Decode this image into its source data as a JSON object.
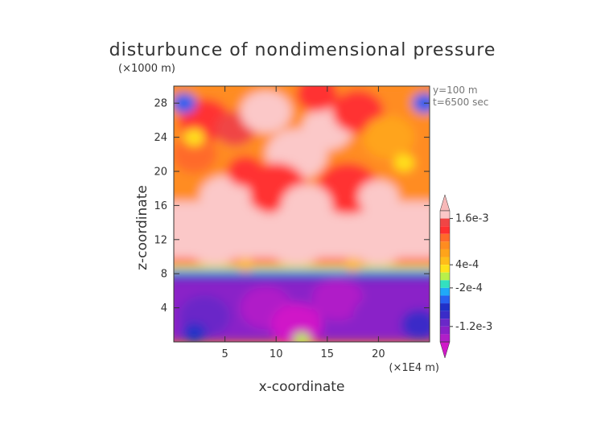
{
  "chart_data": {
    "type": "heatmap",
    "title": "disturbunce of nondimensional pressure",
    "xlabel": "x-coordinate",
    "ylabel": "z-coordinate",
    "x_unit": "(×1E4 m)",
    "y_unit": "(×1000 m)",
    "annotations": [
      "y=100 m",
      "t=6500 sec"
    ],
    "xlim": [
      0,
      25
    ],
    "ylim": [
      0,
      30
    ],
    "x_ticks": [
      5,
      10,
      15,
      20
    ],
    "y_ticks": [
      4,
      8,
      12,
      16,
      20,
      24,
      28
    ],
    "grid": false,
    "colorbar": {
      "position": "right",
      "tick_labels": [
        {
          "label": "1.6e-3",
          "value": 0.0016
        },
        {
          "label": "4e-4",
          "value": 0.0004
        },
        {
          "label": "-2e-4",
          "value": -0.0002
        },
        {
          "label": "-1.2e-3",
          "value": -0.0012
        }
      ],
      "levels": [
        {
          "value": 0.0018,
          "color": "#f7b9b9"
        },
        {
          "value": 0.0016,
          "color": "#fbc8c8"
        },
        {
          "value": 0.0014,
          "color": "#f04545"
        },
        {
          "value": 0.0012,
          "color": "#ff3030"
        },
        {
          "value": 0.001,
          "color": "#ff6a2a"
        },
        {
          "value": 0.0008,
          "color": "#ff8c20"
        },
        {
          "value": 0.0006,
          "color": "#ffa41a"
        },
        {
          "value": 0.0004,
          "color": "#ffbd1a"
        },
        {
          "value": 0.0002,
          "color": "#ffe21a"
        },
        {
          "value": 0.0,
          "color": "#b8f04a"
        },
        {
          "value": -0.0002,
          "color": "#33e0c0"
        },
        {
          "value": -0.0004,
          "color": "#20a8f8"
        },
        {
          "value": -0.0006,
          "color": "#2860f0"
        },
        {
          "value": -0.0008,
          "color": "#2030c8"
        },
        {
          "value": -0.001,
          "color": "#3a2cc8"
        },
        {
          "value": -0.0012,
          "color": "#6a28c8"
        },
        {
          "value": -0.0014,
          "color": "#8a20c8"
        },
        {
          "value": -0.0016,
          "color": "#b01ec8"
        },
        {
          "value": -0.0018,
          "color": "#d018c8"
        }
      ]
    },
    "field_bands": [
      {
        "z_range": [
          0,
          7.5
        ],
        "value": -0.0013,
        "description": "strong negative"
      },
      {
        "z_range": [
          7.5,
          9.5
        ],
        "value": 0.0,
        "description": "steep transition"
      },
      {
        "z_range": [
          9.5,
          16
        ],
        "value": 0.0017,
        "description": "pink maximum"
      },
      {
        "z_range": [
          16,
          30
        ],
        "value": 0.0008,
        "description": "mixed orange/red"
      }
    ]
  }
}
